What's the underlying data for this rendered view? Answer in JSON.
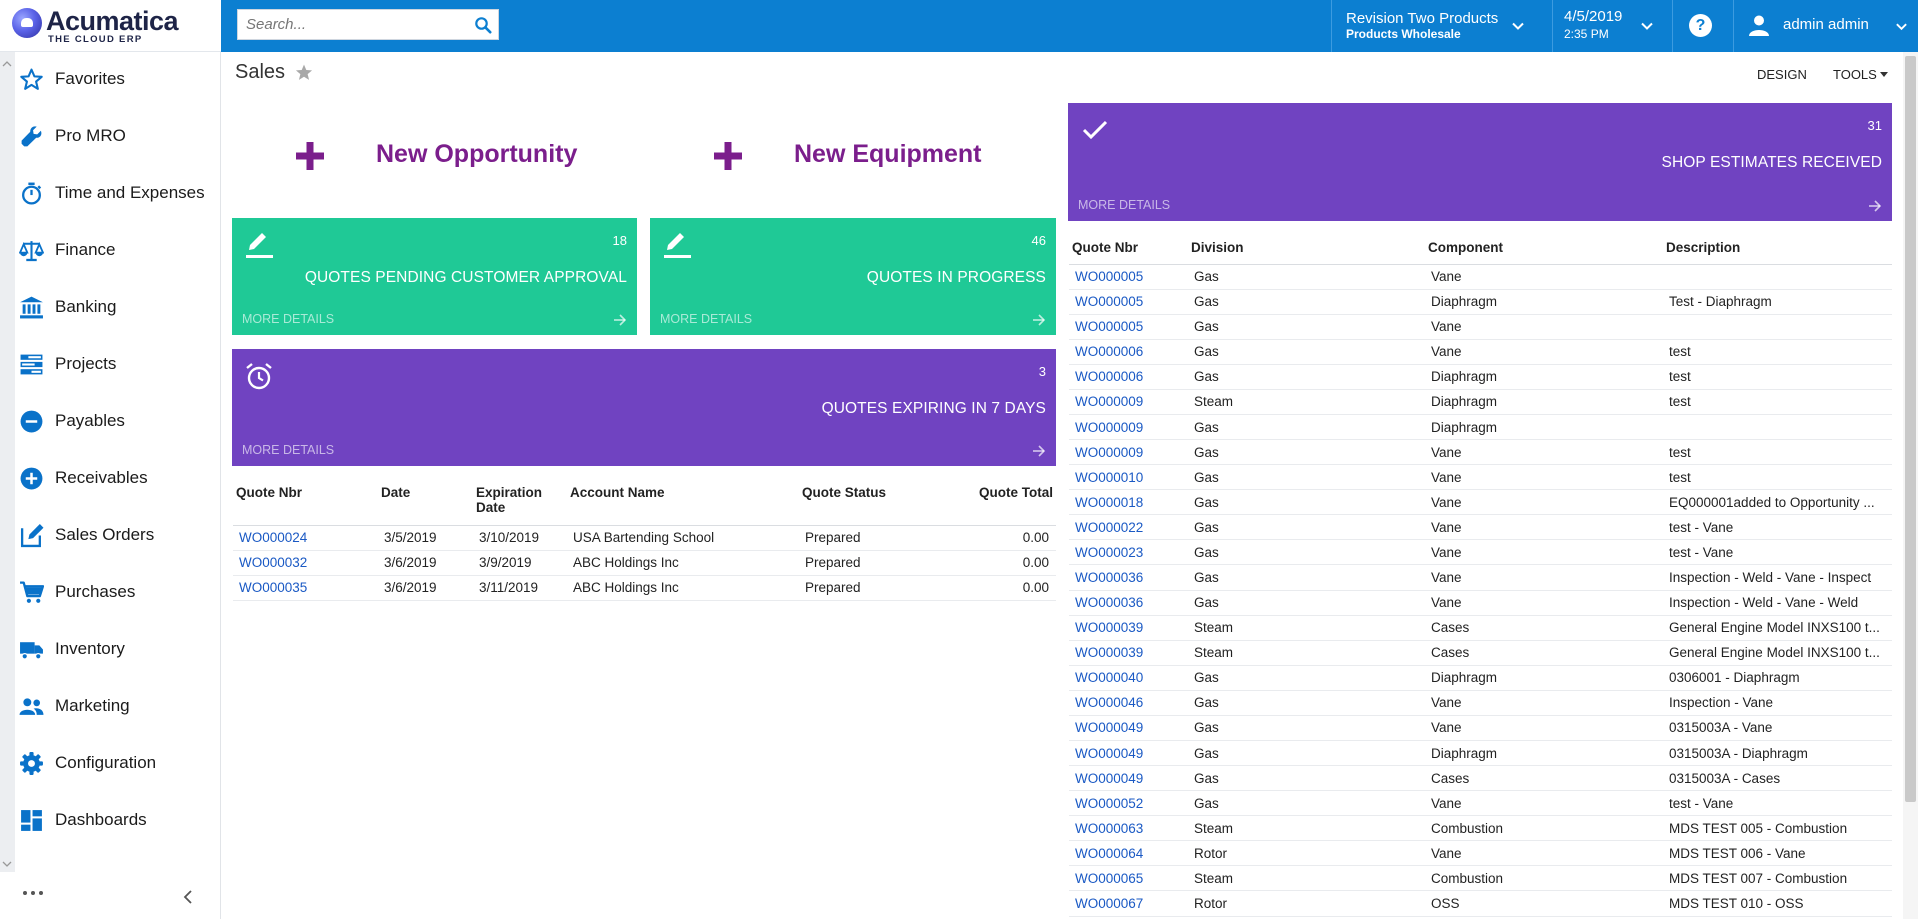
{
  "brand": {
    "name": "Acumatica",
    "tagline": "THE CLOUD ERP"
  },
  "search": {
    "placeholder": "Search..."
  },
  "branch": {
    "name": "Revision Two Products",
    "company": "Products Wholesale"
  },
  "datetime": {
    "date": "4/5/2019",
    "time": "2:35 PM"
  },
  "help": {
    "label": "?"
  },
  "user": {
    "name": "admin admin"
  },
  "sidebar": {
    "items": [
      {
        "label": "Favorites",
        "icon": "star-icon"
      },
      {
        "label": "Pro MRO",
        "icon": "wrench-icon"
      },
      {
        "label": "Time and Expenses",
        "icon": "stopwatch-icon"
      },
      {
        "label": "Finance",
        "icon": "scales-icon"
      },
      {
        "label": "Banking",
        "icon": "bank-icon"
      },
      {
        "label": "Projects",
        "icon": "projects-icon"
      },
      {
        "label": "Payables",
        "icon": "minus-circle-icon"
      },
      {
        "label": "Receivables",
        "icon": "plus-circle-icon"
      },
      {
        "label": "Sales Orders",
        "icon": "edit-icon"
      },
      {
        "label": "Purchases",
        "icon": "cart-icon"
      },
      {
        "label": "Inventory",
        "icon": "truck-icon"
      },
      {
        "label": "Marketing",
        "icon": "people-icon"
      },
      {
        "label": "Configuration",
        "icon": "gear-icon"
      },
      {
        "label": "Dashboards",
        "icon": "dashboard-icon"
      }
    ]
  },
  "page": {
    "title": "Sales"
  },
  "toolbar": {
    "design": "DESIGN",
    "tools": "TOOLS"
  },
  "quick_links": [
    {
      "label": "New Opportunity"
    },
    {
      "label": "New Equipment"
    }
  ],
  "tiles": {
    "pending": {
      "count": "18",
      "title": "QUOTES PENDING CUSTOMER APPROVAL",
      "more": "MORE DETAILS"
    },
    "progress": {
      "count": "46",
      "title": "QUOTES IN PROGRESS",
      "more": "MORE DETAILS"
    },
    "expiring": {
      "count": "3",
      "title": "QUOTES EXPIRING IN 7 DAYS",
      "more": "MORE DETAILS"
    },
    "estimates": {
      "count": "31",
      "title": "SHOP ESTIMATES RECEIVED",
      "more": "MORE DETAILS"
    }
  },
  "colors": {
    "topbar": "#0c7fd1",
    "green_tile": "#1fc996",
    "purple_tile": "#7043c1",
    "link": "#1a59c4",
    "quick_link": "#7b1e8c"
  },
  "quotes_table": {
    "headers": [
      "Quote Nbr",
      "Date",
      "Expiration Date",
      "Account Name",
      "Quote Status",
      "Quote Total"
    ],
    "rows": [
      [
        "WO000024",
        "3/5/2019",
        "3/10/2019",
        "USA Bartending School",
        "Prepared",
        "0.00"
      ],
      [
        "WO000032",
        "3/6/2019",
        "3/9/2019",
        "ABC Holdings Inc",
        "Prepared",
        "0.00"
      ],
      [
        "WO000035",
        "3/6/2019",
        "3/11/2019",
        "ABC Holdings Inc",
        "Prepared",
        "0.00"
      ]
    ]
  },
  "estimates_table": {
    "headers": [
      "Quote Nbr",
      "Division",
      "Component",
      "Description"
    ],
    "rows": [
      [
        "WO000005",
        "Gas",
        "Vane",
        ""
      ],
      [
        "WO000005",
        "Gas",
        "Diaphragm",
        "Test - Diaphragm"
      ],
      [
        "WO000005",
        "Gas",
        "Vane",
        ""
      ],
      [
        "WO000006",
        "Gas",
        "Vane",
        "test"
      ],
      [
        "WO000006",
        "Gas",
        "Diaphragm",
        "test"
      ],
      [
        "WO000009",
        "Steam",
        "Diaphragm",
        "test"
      ],
      [
        "WO000009",
        "Gas",
        "Diaphragm",
        ""
      ],
      [
        "WO000009",
        "Gas",
        "Vane",
        "test"
      ],
      [
        "WO000010",
        "Gas",
        "Vane",
        "test"
      ],
      [
        "WO000018",
        "Gas",
        "Vane",
        "EQ000001added to Opportunity ..."
      ],
      [
        "WO000022",
        "Gas",
        "Vane",
        "test - Vane"
      ],
      [
        "WO000023",
        "Gas",
        "Vane",
        "test - Vane"
      ],
      [
        "WO000036",
        "Gas",
        "Vane",
        "Inspection - Weld - Vane - Inspect"
      ],
      [
        "WO000036",
        "Gas",
        "Vane",
        "Inspection - Weld - Vane - Weld"
      ],
      [
        "WO000039",
        "Steam",
        "Cases",
        "General Engine Model INXS100 t..."
      ],
      [
        "WO000039",
        "Steam",
        "Cases",
        "General Engine Model INXS100 t..."
      ],
      [
        "WO000040",
        "Gas",
        "Diaphragm",
        "0306001 - Diaphragm"
      ],
      [
        "WO000046",
        "Gas",
        "Vane",
        "Inspection - Vane"
      ],
      [
        "WO000049",
        "Gas",
        "Vane",
        "0315003A - Vane"
      ],
      [
        "WO000049",
        "Gas",
        "Diaphragm",
        "0315003A - Diaphragm"
      ],
      [
        "WO000049",
        "Gas",
        "Cases",
        "0315003A - Cases"
      ],
      [
        "WO000052",
        "Gas",
        "Vane",
        "test - Vane"
      ],
      [
        "WO000063",
        "Steam",
        "Combustion",
        "MDS TEST 005 - Combustion"
      ],
      [
        "WO000064",
        "Rotor",
        "Vane",
        "MDS TEST 006 - Vane"
      ],
      [
        "WO000065",
        "Steam",
        "Combustion",
        "MDS TEST 007 - Combustion"
      ],
      [
        "WO000067",
        "Rotor",
        "OSS",
        "MDS TEST 010 - OSS"
      ]
    ]
  }
}
